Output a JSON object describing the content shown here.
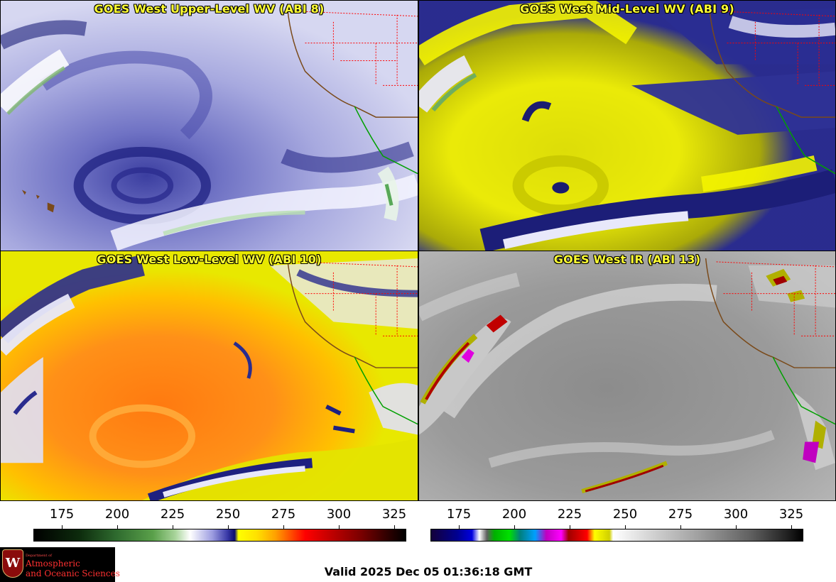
{
  "panels": [
    {
      "id": "upper",
      "title": "GOES West Upper-Level WV (ABI 8)"
    },
    {
      "id": "mid",
      "title": "GOES West Mid-Level WV (ABI 9)"
    },
    {
      "id": "low",
      "title": "GOES West Low-Level WV (ABI 10)"
    },
    {
      "id": "ir",
      "title": "GOES West IR (ABI 13)"
    }
  ],
  "scales": {
    "left": {
      "ticks": [
        "175",
        "200",
        "225",
        "250",
        "275",
        "300",
        "325"
      ]
    },
    "right": {
      "ticks": [
        "175",
        "200",
        "225",
        "250",
        "275",
        "300",
        "325"
      ]
    }
  },
  "logo": {
    "dept": "Department of",
    "line1": "Atmospheric",
    "line2": "and Oceanic Sciences",
    "seal_letter": "W"
  },
  "valid_time": "Valid 2025 Dec 05 01:36:18 GMT",
  "colors": {
    "title_text": "#ffff33",
    "state_borders": "#ff0000",
    "coastline": "#8b4513",
    "mexico_coast": "#00a000"
  }
}
